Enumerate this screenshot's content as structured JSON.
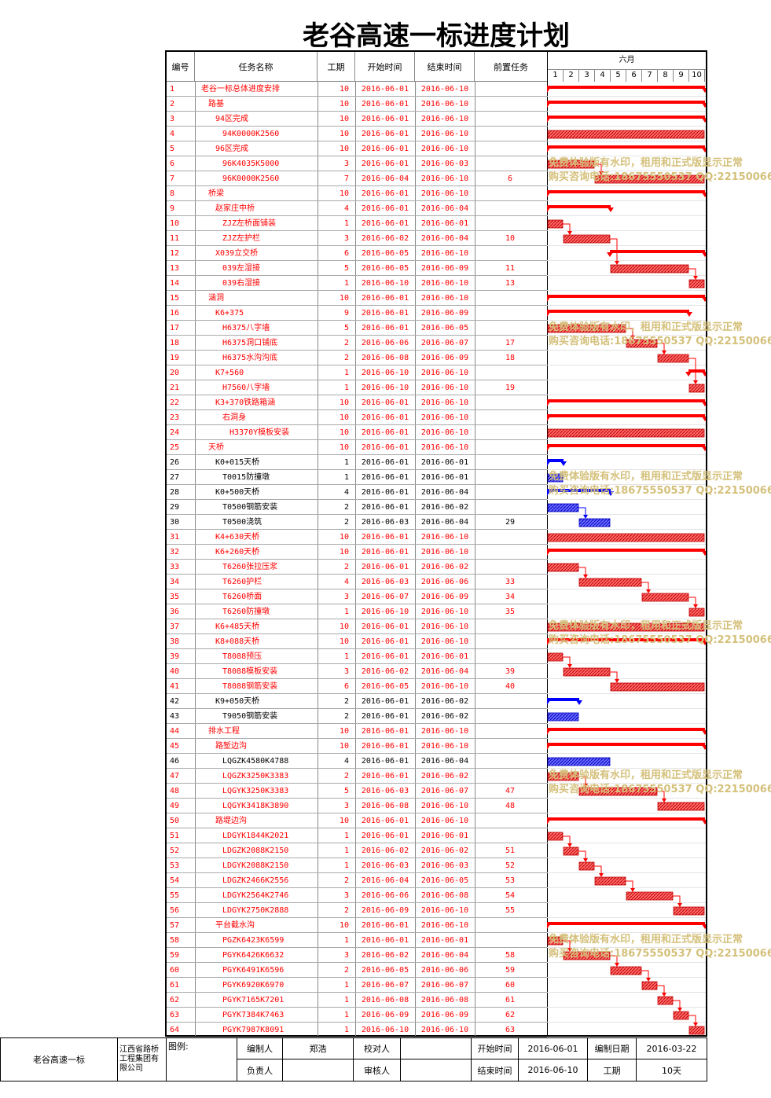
{
  "title": "老谷高速一标进度计划",
  "headers": {
    "id": "编号",
    "name": "任务名称",
    "dur": "工期",
    "start": "开始时间",
    "end": "结束时间",
    "pred": "前置任务",
    "month": "六月"
  },
  "days": [
    "1",
    "2",
    "3",
    "4",
    "5",
    "6",
    "7",
    "8",
    "9",
    "10"
  ],
  "colors": {
    "critical": "#ff0000",
    "normal": "#0000ff",
    "text_critical": "#ff0000",
    "text_normal": "#000000",
    "watermark": "#d4c07a"
  },
  "watermarks": [
    {
      "line1": "免费体验版有水印，租用和正式版显示正常",
      "line2": "购买咨询电话:18675550537 QQ:22150066",
      "row": 6
    },
    {
      "line1": "免费体验版有水印，租用和正式版显示正常",
      "line2": "购买咨询电话:18675550537 QQ:22150066",
      "row": 17
    },
    {
      "line1": "免费体验版有水印，租用和正式版显示正常",
      "line2": "购买咨询电话:18675550537 QQ:22150066",
      "row": 27
    },
    {
      "line1": "免费体验版有水印，租用和正式版显示正常",
      "line2": "购买咨询电话:18675550537 QQ:22150066",
      "row": 37
    },
    {
      "line1": "免费体验版有水印，租用和正式版显示正常",
      "line2": "购买咨询电话:18675550537 QQ:22150066",
      "row": 47
    },
    {
      "line1": "免费体验版有水印，租用和正式版显示正常",
      "line2": "购买咨询电话:18675550537 QQ:22150066",
      "row": 58
    }
  ],
  "tasks": [
    {
      "id": "1",
      "name": "老谷一标总体进度安排",
      "lvl": 0,
      "dur": "10",
      "start": "2016-06-01",
      "end": "2016-06-10",
      "pred": "",
      "s": 1,
      "e": 10,
      "sum": true,
      "crit": true
    },
    {
      "id": "2",
      "name": "路基",
      "lvl": 1,
      "dur": "10",
      "start": "2016-06-01",
      "end": "2016-06-10",
      "pred": "",
      "s": 1,
      "e": 10,
      "sum": true,
      "crit": true
    },
    {
      "id": "3",
      "name": "94区完成",
      "lvl": 2,
      "dur": "10",
      "start": "2016-06-01",
      "end": "2016-06-10",
      "pred": "",
      "s": 1,
      "e": 10,
      "sum": true,
      "crit": true
    },
    {
      "id": "4",
      "name": "94K0000K2560",
      "lvl": 3,
      "dur": "10",
      "start": "2016-06-01",
      "end": "2016-06-10",
      "pred": "",
      "s": 1,
      "e": 10,
      "sum": false,
      "crit": true
    },
    {
      "id": "5",
      "name": "96区完成",
      "lvl": 2,
      "dur": "10",
      "start": "2016-06-01",
      "end": "2016-06-10",
      "pred": "",
      "s": 1,
      "e": 10,
      "sum": true,
      "crit": true
    },
    {
      "id": "6",
      "name": "96K4035K5000",
      "lvl": 3,
      "dur": "3",
      "start": "2016-06-01",
      "end": "2016-06-03",
      "pred": "",
      "s": 1,
      "e": 3,
      "sum": false,
      "crit": true
    },
    {
      "id": "7",
      "name": "96K0000K2560",
      "lvl": 3,
      "dur": "7",
      "start": "2016-06-04",
      "end": "2016-06-10",
      "pred": "6",
      "s": 4,
      "e": 10,
      "sum": false,
      "crit": true
    },
    {
      "id": "8",
      "name": "桥梁",
      "lvl": 1,
      "dur": "10",
      "start": "2016-06-01",
      "end": "2016-06-10",
      "pred": "",
      "s": 1,
      "e": 10,
      "sum": true,
      "crit": true
    },
    {
      "id": "9",
      "name": "赵家庄中桥",
      "lvl": 2,
      "dur": "4",
      "start": "2016-06-01",
      "end": "2016-06-04",
      "pred": "",
      "s": 1,
      "e": 4,
      "sum": true,
      "crit": true
    },
    {
      "id": "10",
      "name": "ZJZ左桥面铺装",
      "lvl": 3,
      "dur": "1",
      "start": "2016-06-01",
      "end": "2016-06-01",
      "pred": "",
      "s": 1,
      "e": 1,
      "sum": false,
      "crit": true
    },
    {
      "id": "11",
      "name": "ZJZ左护栏",
      "lvl": 3,
      "dur": "3",
      "start": "2016-06-02",
      "end": "2016-06-04",
      "pred": "10",
      "s": 2,
      "e": 4,
      "sum": false,
      "crit": true
    },
    {
      "id": "12",
      "name": "X039立交桥",
      "lvl": 2,
      "dur": "6",
      "start": "2016-06-05",
      "end": "2016-06-10",
      "pred": "",
      "s": 5,
      "e": 10,
      "sum": true,
      "crit": true
    },
    {
      "id": "13",
      "name": "039左湿接",
      "lvl": 3,
      "dur": "5",
      "start": "2016-06-05",
      "end": "2016-06-09",
      "pred": "11",
      "s": 5,
      "e": 9,
      "sum": false,
      "crit": true
    },
    {
      "id": "14",
      "name": "039右湿接",
      "lvl": 3,
      "dur": "1",
      "start": "2016-06-10",
      "end": "2016-06-10",
      "pred": "13",
      "s": 10,
      "e": 10,
      "sum": false,
      "crit": true
    },
    {
      "id": "15",
      "name": "涵洞",
      "lvl": 1,
      "dur": "10",
      "start": "2016-06-01",
      "end": "2016-06-10",
      "pred": "",
      "s": 1,
      "e": 10,
      "sum": true,
      "crit": true
    },
    {
      "id": "16",
      "name": "K6+375",
      "lvl": 2,
      "dur": "9",
      "start": "2016-06-01",
      "end": "2016-06-09",
      "pred": "",
      "s": 1,
      "e": 9,
      "sum": true,
      "crit": true
    },
    {
      "id": "17",
      "name": "H6375八字墙",
      "lvl": 3,
      "dur": "5",
      "start": "2016-06-01",
      "end": "2016-06-05",
      "pred": "",
      "s": 1,
      "e": 5,
      "sum": false,
      "crit": true
    },
    {
      "id": "18",
      "name": "H6375洞口铺底",
      "lvl": 3,
      "dur": "2",
      "start": "2016-06-06",
      "end": "2016-06-07",
      "pred": "17",
      "s": 6,
      "e": 7,
      "sum": false,
      "crit": true
    },
    {
      "id": "19",
      "name": "H6375水沟沟底",
      "lvl": 3,
      "dur": "2",
      "start": "2016-06-08",
      "end": "2016-06-09",
      "pred": "18",
      "s": 8,
      "e": 9,
      "sum": false,
      "crit": true
    },
    {
      "id": "20",
      "name": "K7+560",
      "lvl": 2,
      "dur": "1",
      "start": "2016-06-10",
      "end": "2016-06-10",
      "pred": "",
      "s": 10,
      "e": 10,
      "sum": true,
      "crit": true
    },
    {
      "id": "21",
      "name": "H7560八字墙",
      "lvl": 3,
      "dur": "1",
      "start": "2016-06-10",
      "end": "2016-06-10",
      "pred": "19",
      "s": 10,
      "e": 10,
      "sum": false,
      "crit": true
    },
    {
      "id": "22",
      "name": "K3+370铁路箱涵",
      "lvl": 2,
      "dur": "10",
      "start": "2016-06-01",
      "end": "2016-06-10",
      "pred": "",
      "s": 1,
      "e": 10,
      "sum": true,
      "crit": true
    },
    {
      "id": "23",
      "name": "右洞身",
      "lvl": 3,
      "dur": "10",
      "start": "2016-06-01",
      "end": "2016-06-10",
      "pred": "",
      "s": 1,
      "e": 10,
      "sum": true,
      "crit": true
    },
    {
      "id": "24",
      "name": "H3370Y模板安装",
      "lvl": 4,
      "dur": "10",
      "start": "2016-06-01",
      "end": "2016-06-10",
      "pred": "",
      "s": 1,
      "e": 10,
      "sum": false,
      "crit": true
    },
    {
      "id": "25",
      "name": "天桥",
      "lvl": 1,
      "dur": "10",
      "start": "2016-06-01",
      "end": "2016-06-10",
      "pred": "",
      "s": 1,
      "e": 10,
      "sum": true,
      "crit": true
    },
    {
      "id": "26",
      "name": "K0+015天桥",
      "lvl": 2,
      "dur": "1",
      "start": "2016-06-01",
      "end": "2016-06-01",
      "pred": "",
      "s": 1,
      "e": 1,
      "sum": true,
      "crit": false
    },
    {
      "id": "27",
      "name": "T0015防撞墩",
      "lvl": 3,
      "dur": "1",
      "start": "2016-06-01",
      "end": "2016-06-01",
      "pred": "",
      "s": 1,
      "e": 1,
      "sum": false,
      "crit": false
    },
    {
      "id": "28",
      "name": "K0+500天桥",
      "lvl": 2,
      "dur": "4",
      "start": "2016-06-01",
      "end": "2016-06-04",
      "pred": "",
      "s": 1,
      "e": 4,
      "sum": true,
      "crit": false
    },
    {
      "id": "29",
      "name": "T0500钢筋安装",
      "lvl": 3,
      "dur": "2",
      "start": "2016-06-01",
      "end": "2016-06-02",
      "pred": "",
      "s": 1,
      "e": 2,
      "sum": false,
      "crit": false
    },
    {
      "id": "30",
      "name": "T0500浇筑",
      "lvl": 3,
      "dur": "2",
      "start": "2016-06-03",
      "end": "2016-06-04",
      "pred": "29",
      "s": 3,
      "e": 4,
      "sum": false,
      "crit": false
    },
    {
      "id": "31",
      "name": "K4+630天桥",
      "lvl": 2,
      "dur": "10",
      "start": "2016-06-01",
      "end": "2016-06-10",
      "pred": "",
      "s": 1,
      "e": 10,
      "sum": false,
      "crit": true
    },
    {
      "id": "32",
      "name": "K6+260天桥",
      "lvl": 2,
      "dur": "10",
      "start": "2016-06-01",
      "end": "2016-06-10",
      "pred": "",
      "s": 1,
      "e": 10,
      "sum": true,
      "crit": true
    },
    {
      "id": "33",
      "name": "T6260张拉压浆",
      "lvl": 3,
      "dur": "2",
      "start": "2016-06-01",
      "end": "2016-06-02",
      "pred": "",
      "s": 1,
      "e": 2,
      "sum": false,
      "crit": true
    },
    {
      "id": "34",
      "name": "T6260护栏",
      "lvl": 3,
      "dur": "4",
      "start": "2016-06-03",
      "end": "2016-06-06",
      "pred": "33",
      "s": 3,
      "e": 6,
      "sum": false,
      "crit": true
    },
    {
      "id": "35",
      "name": "T6260桥面",
      "lvl": 3,
      "dur": "3",
      "start": "2016-06-07",
      "end": "2016-06-09",
      "pred": "34",
      "s": 7,
      "e": 9,
      "sum": false,
      "crit": true
    },
    {
      "id": "36",
      "name": "T6260防撞墩",
      "lvl": 3,
      "dur": "1",
      "start": "2016-06-10",
      "end": "2016-06-10",
      "pred": "35",
      "s": 10,
      "e": 10,
      "sum": false,
      "crit": true
    },
    {
      "id": "37",
      "name": "K6+485天桥",
      "lvl": 2,
      "dur": "10",
      "start": "2016-06-01",
      "end": "2016-06-10",
      "pred": "",
      "s": 1,
      "e": 10,
      "sum": false,
      "crit": true
    },
    {
      "id": "38",
      "name": "K8+088天桥",
      "lvl": 2,
      "dur": "10",
      "start": "2016-06-01",
      "end": "2016-06-10",
      "pred": "",
      "s": 1,
      "e": 10,
      "sum": true,
      "crit": true
    },
    {
      "id": "39",
      "name": "T8088预压",
      "lvl": 3,
      "dur": "1",
      "start": "2016-06-01",
      "end": "2016-06-01",
      "pred": "",
      "s": 1,
      "e": 1,
      "sum": false,
      "crit": true
    },
    {
      "id": "40",
      "name": "T8088模板安装",
      "lvl": 3,
      "dur": "3",
      "start": "2016-06-02",
      "end": "2016-06-04",
      "pred": "39",
      "s": 2,
      "e": 4,
      "sum": false,
      "crit": true
    },
    {
      "id": "41",
      "name": "T8088钢筋安装",
      "lvl": 3,
      "dur": "6",
      "start": "2016-06-05",
      "end": "2016-06-10",
      "pred": "40",
      "s": 5,
      "e": 10,
      "sum": false,
      "crit": true
    },
    {
      "id": "42",
      "name": "K9+050天桥",
      "lvl": 2,
      "dur": "2",
      "start": "2016-06-01",
      "end": "2016-06-02",
      "pred": "",
      "s": 1,
      "e": 2,
      "sum": true,
      "crit": false
    },
    {
      "id": "43",
      "name": "T9050钢筋安装",
      "lvl": 3,
      "dur": "2",
      "start": "2016-06-01",
      "end": "2016-06-02",
      "pred": "",
      "s": 1,
      "e": 2,
      "sum": false,
      "crit": false
    },
    {
      "id": "44",
      "name": "排水工程",
      "lvl": 1,
      "dur": "10",
      "start": "2016-06-01",
      "end": "2016-06-10",
      "pred": "",
      "s": 1,
      "e": 10,
      "sum": true,
      "crit": true
    },
    {
      "id": "45",
      "name": "路堑边沟",
      "lvl": 2,
      "dur": "10",
      "start": "2016-06-01",
      "end": "2016-06-10",
      "pred": "",
      "s": 1,
      "e": 10,
      "sum": true,
      "crit": true
    },
    {
      "id": "46",
      "name": "LQGZK4580K4788",
      "lvl": 3,
      "dur": "4",
      "start": "2016-06-01",
      "end": "2016-06-04",
      "pred": "",
      "s": 1,
      "e": 4,
      "sum": false,
      "crit": false
    },
    {
      "id": "47",
      "name": "LQGZK3250K3383",
      "lvl": 3,
      "dur": "2",
      "start": "2016-06-01",
      "end": "2016-06-02",
      "pred": "",
      "s": 1,
      "e": 2,
      "sum": false,
      "crit": true
    },
    {
      "id": "48",
      "name": "LQGYK3250K3383",
      "lvl": 3,
      "dur": "5",
      "start": "2016-06-03",
      "end": "2016-06-07",
      "pred": "47",
      "s": 3,
      "e": 7,
      "sum": false,
      "crit": true
    },
    {
      "id": "49",
      "name": "LQGYK3418K3890",
      "lvl": 3,
      "dur": "3",
      "start": "2016-06-08",
      "end": "2016-06-10",
      "pred": "48",
      "s": 8,
      "e": 10,
      "sum": false,
      "crit": true
    },
    {
      "id": "50",
      "name": "路堤边沟",
      "lvl": 2,
      "dur": "10",
      "start": "2016-06-01",
      "end": "2016-06-10",
      "pred": "",
      "s": 1,
      "e": 10,
      "sum": true,
      "crit": true
    },
    {
      "id": "51",
      "name": "LDGYK1844K2021",
      "lvl": 3,
      "dur": "1",
      "start": "2016-06-01",
      "end": "2016-06-01",
      "pred": "",
      "s": 1,
      "e": 1,
      "sum": false,
      "crit": true
    },
    {
      "id": "52",
      "name": "LDGZK2088K2150",
      "lvl": 3,
      "dur": "1",
      "start": "2016-06-02",
      "end": "2016-06-02",
      "pred": "51",
      "s": 2,
      "e": 2,
      "sum": false,
      "crit": true
    },
    {
      "id": "53",
      "name": "LDGYK2088K2150",
      "lvl": 3,
      "dur": "1",
      "start": "2016-06-03",
      "end": "2016-06-03",
      "pred": "52",
      "s": 3,
      "e": 3,
      "sum": false,
      "crit": true
    },
    {
      "id": "54",
      "name": "LDGZK2466K2556",
      "lvl": 3,
      "dur": "2",
      "start": "2016-06-04",
      "end": "2016-06-05",
      "pred": "53",
      "s": 4,
      "e": 5,
      "sum": false,
      "crit": true
    },
    {
      "id": "55",
      "name": "LDGYK2564K2746",
      "lvl": 3,
      "dur": "3",
      "start": "2016-06-06",
      "end": "2016-06-08",
      "pred": "54",
      "s": 6,
      "e": 8,
      "sum": false,
      "crit": true
    },
    {
      "id": "56",
      "name": "LDGYK2750K2888",
      "lvl": 3,
      "dur": "2",
      "start": "2016-06-09",
      "end": "2016-06-10",
      "pred": "55",
      "s": 9,
      "e": 10,
      "sum": false,
      "crit": true
    },
    {
      "id": "57",
      "name": "平台截水沟",
      "lvl": 2,
      "dur": "10",
      "start": "2016-06-01",
      "end": "2016-06-10",
      "pred": "",
      "s": 1,
      "e": 10,
      "sum": true,
      "crit": true
    },
    {
      "id": "58",
      "name": "PGZK6423K6599",
      "lvl": 3,
      "dur": "1",
      "start": "2016-06-01",
      "end": "2016-06-01",
      "pred": "",
      "s": 1,
      "e": 1,
      "sum": false,
      "crit": true
    },
    {
      "id": "59",
      "name": "PGYK6426K6632",
      "lvl": 3,
      "dur": "3",
      "start": "2016-06-02",
      "end": "2016-06-04",
      "pred": "58",
      "s": 2,
      "e": 4,
      "sum": false,
      "crit": true
    },
    {
      "id": "60",
      "name": "PGYK6491K6596",
      "lvl": 3,
      "dur": "2",
      "start": "2016-06-05",
      "end": "2016-06-06",
      "pred": "59",
      "s": 5,
      "e": 6,
      "sum": false,
      "crit": true
    },
    {
      "id": "61",
      "name": "PGYK6920K6970",
      "lvl": 3,
      "dur": "1",
      "start": "2016-06-07",
      "end": "2016-06-07",
      "pred": "60",
      "s": 7,
      "e": 7,
      "sum": false,
      "crit": true
    },
    {
      "id": "62",
      "name": "PGYK7165K7201",
      "lvl": 3,
      "dur": "1",
      "start": "2016-06-08",
      "end": "2016-06-08",
      "pred": "61",
      "s": 8,
      "e": 8,
      "sum": false,
      "crit": true
    },
    {
      "id": "63",
      "name": "PGYK7384K7463",
      "lvl": 3,
      "dur": "1",
      "start": "2016-06-09",
      "end": "2016-06-09",
      "pred": "62",
      "s": 9,
      "e": 9,
      "sum": false,
      "crit": true
    },
    {
      "id": "64",
      "name": "PGYK7987K8091",
      "lvl": 3,
      "dur": "1",
      "start": "2016-06-10",
      "end": "2016-06-10",
      "pred": "63",
      "s": 10,
      "e": 10,
      "sum": false,
      "crit": true
    }
  ],
  "footer": {
    "project": "老谷高速一标",
    "company": "江西省路桥工程集团有限公司",
    "legend_label": "图例:",
    "compiler_label": "编制人",
    "compiler": "郑浩",
    "checker_label": "校对人",
    "checker": "",
    "start_label": "开始时间",
    "start": "2016-06-01",
    "date_label": "编制日期",
    "date": "2016-03-22",
    "leader_label": "负责人",
    "leader": "",
    "reviewer_label": "审核人",
    "reviewer": "",
    "end_label": "结束时间",
    "end": "2016-06-10",
    "dur_label": "工期",
    "dur": "10天"
  }
}
